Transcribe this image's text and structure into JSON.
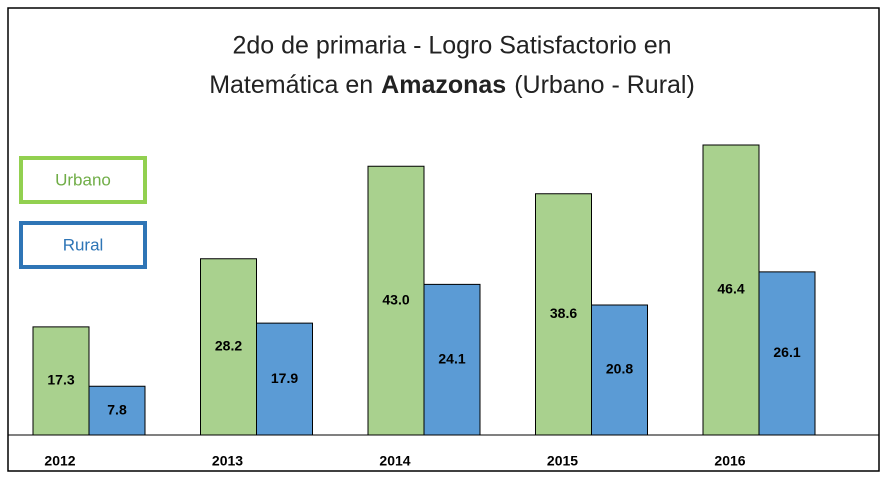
{
  "chart_data": {
    "type": "bar",
    "title": [
      "2do de primaria -  Logro Satisfactorio en",
      "Matemática en",
      "Amazonas",
      "(Urbano - Rural)"
    ],
    "categories": [
      "2012",
      "2013",
      "2014",
      "2015",
      "2016"
    ],
    "series": [
      {
        "name": "Urbano",
        "color": "#a9d18e",
        "values": [
          17.3,
          28.2,
          43,
          38.6,
          46.4
        ],
        "value_labels": [
          "17.3",
          "28.2",
          "43.0",
          "38.6",
          "46.4"
        ]
      },
      {
        "name": "Rural",
        "color": "#5b9bd5",
        "values": [
          7.8,
          17.9,
          24.1,
          20.8,
          26.1
        ],
        "value_labels": [
          "7.8",
          "17.9",
          "24.1",
          "20.8",
          "26.1"
        ]
      }
    ],
    "legend_colors": [
      "#92d050",
      "#2e75b6"
    ],
    "legend_text_colors": [
      "#70ad47",
      "#2e75b6"
    ]
  }
}
